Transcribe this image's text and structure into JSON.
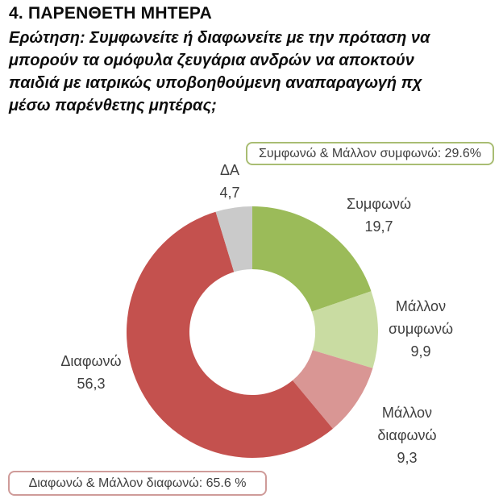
{
  "header": {
    "title": "4. ΠΑΡΕΝΘΕΤΗ ΜΗΤΕΡΑ",
    "question_lines": [
      "Ερώτηση: Συμφωνείτε ή διαφωνείτε με την πρόταση να",
      "μπορούν τα ομόφυλα ζευγάρια ανδρών να αποκτούν",
      "παιδιά με ιατρικώς υποβοηθούμενη αναπαραγωγή πχ",
      "μέσω παρένθετης μητέρας;"
    ]
  },
  "callouts": {
    "agree": {
      "text": "Συμφωνώ & Μάλλον συμφωνώ: 29.6%",
      "border_color": "#a9bd73"
    },
    "disagree": {
      "text": "Διαφωνώ & Μάλλον διαφωνώ: 65.6 %",
      "border_color": "#cf9b99"
    }
  },
  "chart_data": {
    "type": "pie",
    "subtype": "donut",
    "hole_ratio": 0.5,
    "start_angle_deg": 0,
    "direction": "clockwise",
    "legend": "none",
    "slices": [
      {
        "label": "Συμφωνώ",
        "value": 19.7,
        "display_value": "19,7",
        "color": "#9bbb59"
      },
      {
        "label": "Μάλλον συμφωνώ",
        "value": 9.9,
        "display_value": "9,9",
        "color": "#c9dca2"
      },
      {
        "label": "Μάλλον διαφωνώ",
        "value": 9.3,
        "display_value": "9,3",
        "color": "#d99694"
      },
      {
        "label": "Διαφωνώ",
        "value": 56.3,
        "display_value": "56,3",
        "color": "#c4514e"
      },
      {
        "label": "ΔΑ",
        "value": 4.7,
        "display_value": "4,7",
        "color": "#cacaca"
      }
    ],
    "annotations": [
      "Συμφωνώ & Μάλλον συμφωνώ: 29.6%",
      "Διαφωνώ & Μάλλον διαφωνώ: 65.6 %"
    ],
    "slice_labels": [
      {
        "lines": [
          "ΔΑ",
          "4,7"
        ]
      },
      {
        "lines": [
          "Συμφωνώ",
          "19,7"
        ]
      },
      {
        "lines": [
          "Μάλλον",
          "συμφωνώ",
          "9,9"
        ]
      },
      {
        "lines": [
          "Μάλλον",
          "διαφωνώ",
          "9,3"
        ]
      },
      {
        "lines": [
          "Διαφωνώ",
          "56,3"
        ]
      }
    ]
  }
}
